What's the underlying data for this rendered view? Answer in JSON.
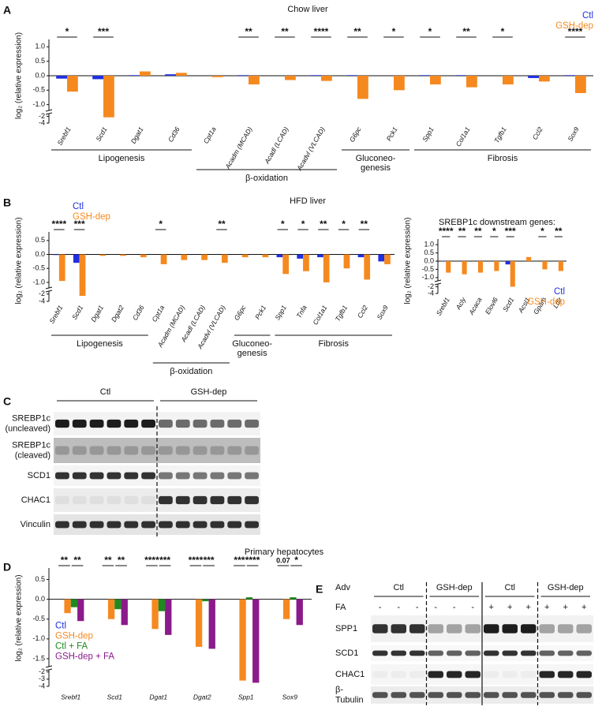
{
  "panel_labels": [
    "A",
    "B",
    "C",
    "D",
    "E"
  ],
  "chart_data": [
    {
      "type": "bar",
      "title": "Chow liver",
      "y_label": "log₂ (relative expression)",
      "legend": "outside upper right",
      "categories": [
        "Srebf1",
        "Scd1",
        "Dgat1",
        "Cd36",
        "Cpt1a",
        "Acadm (MCAD)",
        "Acadl (LCAD)",
        "Acadvl (VLCAD)",
        "G6pc",
        "Pck1",
        "Spp1",
        "Col1a1",
        "Tgfb1",
        "Ccl2",
        "Sox9"
      ],
      "series": [
        {
          "name": "Ctl",
          "color": "#1f2fe0",
          "values": [
            -0.1,
            -0.12,
            0.02,
            0.05,
            0,
            0.02,
            0,
            0.02,
            0.02,
            0,
            0.02,
            0.02,
            0,
            -0.08,
            0.02
          ]
        },
        {
          "name": "GSH-dep",
          "color": "#f5891f",
          "values": [
            -0.55,
            -2.3,
            0.15,
            0.1,
            -0.05,
            -0.3,
            -0.15,
            -0.18,
            -0.8,
            -0.5,
            -0.3,
            -0.4,
            -0.3,
            -0.2,
            -0.6
          ]
        }
      ],
      "significance": [
        "*",
        "***",
        null,
        null,
        null,
        "**",
        "**",
        "****",
        "**",
        "*",
        "*",
        "**",
        "*",
        null,
        "****"
      ],
      "groups": [
        {
          "label": [
            "Lipogenesis"
          ],
          "span": [
            0,
            3
          ]
        },
        {
          "label": [
            "β-oxidation"
          ],
          "span": [
            4,
            7
          ]
        },
        {
          "label": [
            "Gluconeo-",
            "genesis"
          ],
          "span": [
            8,
            9
          ]
        },
        {
          "label": [
            "Fibrosis"
          ],
          "span": [
            10,
            14
          ]
        }
      ],
      "ylim": [
        -4,
        1.2
      ],
      "ybreak": -1.2,
      "yticks": [
        {
          "value": 1,
          "label": "1.0"
        },
        0.5,
        {
          "value": 0,
          "label": "0.0"
        },
        -0.5,
        {
          "value": -1,
          "label": "-1.0"
        },
        -2,
        -4
      ]
    },
    {
      "type": "bar",
      "title": "HFD liver",
      "y_label": "log₂ (relative expression)",
      "legend": "upper left",
      "categories": [
        "Srebf1",
        "Scd1",
        "Dgat1",
        "Dgat2",
        "Cd36",
        "Cpt1a",
        "Acadm (MCAD)",
        "Acadl (LCAD)",
        "Acadvl (VLCAD)",
        "G6pc",
        "Pck1",
        "Spp1",
        "Tnfa",
        "Col1a1",
        "Tgfb1",
        "Ccl2",
        "Sox9"
      ],
      "series": [
        {
          "name": "Ctl",
          "color": "#1f2fe0",
          "values": [
            -0.02,
            -0.3,
            0,
            0,
            0,
            0,
            0,
            0,
            0,
            0,
            0,
            -0.1,
            -0.15,
            -0.1,
            0,
            -0.1,
            -0.25
          ]
        },
        {
          "name": "GSH-dep",
          "color": "#f5891f",
          "values": [
            -0.95,
            -2.5,
            -0.05,
            -0.05,
            -0.1,
            -0.35,
            -0.2,
            -0.2,
            -0.3,
            -0.1,
            -0.1,
            -0.7,
            -0.6,
            -1.0,
            -0.5,
            -0.9,
            -0.35
          ]
        }
      ],
      "significance": [
        "****",
        "***",
        null,
        null,
        null,
        "*",
        null,
        null,
        "**",
        null,
        null,
        "*",
        "*",
        "**",
        "*",
        "**",
        null
      ],
      "groups": [
        {
          "label": [
            "Lipogenesis"
          ],
          "span": [
            0,
            4
          ]
        },
        {
          "label": [
            "β-oxidation"
          ],
          "span": [
            5,
            8
          ]
        },
        {
          "label": [
            "Gluconeo-",
            "genesis"
          ],
          "span": [
            9,
            10
          ]
        },
        {
          "label": [
            "Fibrosis"
          ],
          "span": [
            11,
            16
          ]
        }
      ],
      "ylim": [
        -4,
        0.75
      ],
      "ybreak": -1.2,
      "yticks": [
        0.5,
        {
          "value": 0,
          "label": "0.0"
        },
        -0.5,
        {
          "value": -1,
          "label": "-1.0"
        },
        -2,
        -4
      ]
    },
    {
      "type": "bar",
      "title": "SREBP1c downstream genes:",
      "y_label": "log₂ (relative expression)",
      "legend": "lower right",
      "categories": [
        "Srebf1",
        "Acly",
        "Acaca",
        "Elovl6",
        "Scd1",
        "Acsl1",
        "Gpam",
        "Ldlr"
      ],
      "series": [
        {
          "name": "Ctl",
          "color": "#1f2fe0",
          "values": [
            0.02,
            0,
            0,
            0,
            -0.2,
            0,
            0,
            0
          ]
        },
        {
          "name": "GSH-dep",
          "color": "#f5891f",
          "values": [
            -0.7,
            -0.8,
            -0.7,
            -0.6,
            -2.0,
            0.25,
            -0.5,
            -0.6
          ]
        }
      ],
      "significance": [
        "****",
        "**",
        "**",
        "*",
        "***",
        null,
        "*",
        "**"
      ],
      "ylim": [
        -4,
        1.25
      ],
      "ybreak": -1.2,
      "yticks": [
        {
          "value": 1,
          "label": "1.0"
        },
        0.5,
        {
          "value": 0,
          "label": "0.0"
        },
        -0.5,
        {
          "value": -1,
          "label": "-1.0"
        },
        -2,
        -4
      ]
    },
    {
      "type": "bar",
      "title": "Primary hepatocytes",
      "y_label": "log₂ (relative expression)",
      "legend": "lower left",
      "categories": [
        "Srebf1",
        "Scd1",
        "Dgat1",
        "Dgat2",
        "Spp1",
        "Sox9"
      ],
      "series": [
        {
          "name": "Ctl",
          "color": "#1f2fe0",
          "values": [
            0,
            0,
            0,
            0,
            0,
            0
          ]
        },
        {
          "name": "GSH-dep",
          "color": "#f5891f",
          "values": [
            -0.35,
            -0.5,
            -0.75,
            -1.2,
            -3.2,
            -0.5
          ]
        },
        {
          "name": "Ctl + FA",
          "color": "#1f8a1f",
          "values": [
            -0.2,
            -0.25,
            -0.3,
            -0.05,
            0.05,
            0.05
          ]
        },
        {
          "name": "GSH-dep + FA",
          "color": "#8b1a8b",
          "values": [
            -0.55,
            -0.65,
            -0.9,
            -1.25,
            -3.5,
            -0.65
          ]
        }
      ],
      "significance": [
        [
          "**",
          "**"
        ],
        [
          "**",
          "**"
        ],
        [
          "****",
          "***"
        ],
        [
          "****",
          "***"
        ],
        [
          "***",
          "****"
        ],
        [
          "0.07",
          "*"
        ]
      ],
      "ylim": [
        -4,
        0.75
      ],
      "ybreak": -1.7,
      "yticks": [
        0.5,
        {
          "value": 0,
          "label": "0.0"
        },
        -0.5,
        {
          "value": -1,
          "label": "-1.0"
        },
        -1.5,
        -2,
        -3,
        -4
      ]
    }
  ],
  "blots": [
    {
      "groups": [
        "Ctl",
        "GSH-dep"
      ],
      "rows": [
        [
          "SREBP1c",
          "(uncleaved)"
        ],
        [
          "SREBP1c",
          "(cleaved)"
        ],
        [
          "SCD1"
        ],
        [
          "CHAC1"
        ],
        [
          "Vinculin"
        ]
      ]
    },
    {
      "row_header": "Adv",
      "groups": [
        "Ctl",
        "GSH-dep",
        "Ctl",
        "GSH-dep"
      ],
      "condition_label": "FA",
      "conditions": [
        "-",
        "-",
        "-",
        "-",
        "-",
        "-",
        "+",
        "+",
        "+",
        "+",
        "+",
        "+"
      ],
      "rows": [
        [
          "SPP1"
        ],
        [
          "SCD1"
        ],
        [
          "CHAC1"
        ],
        [
          "β-",
          "Tubulin"
        ]
      ]
    }
  ]
}
